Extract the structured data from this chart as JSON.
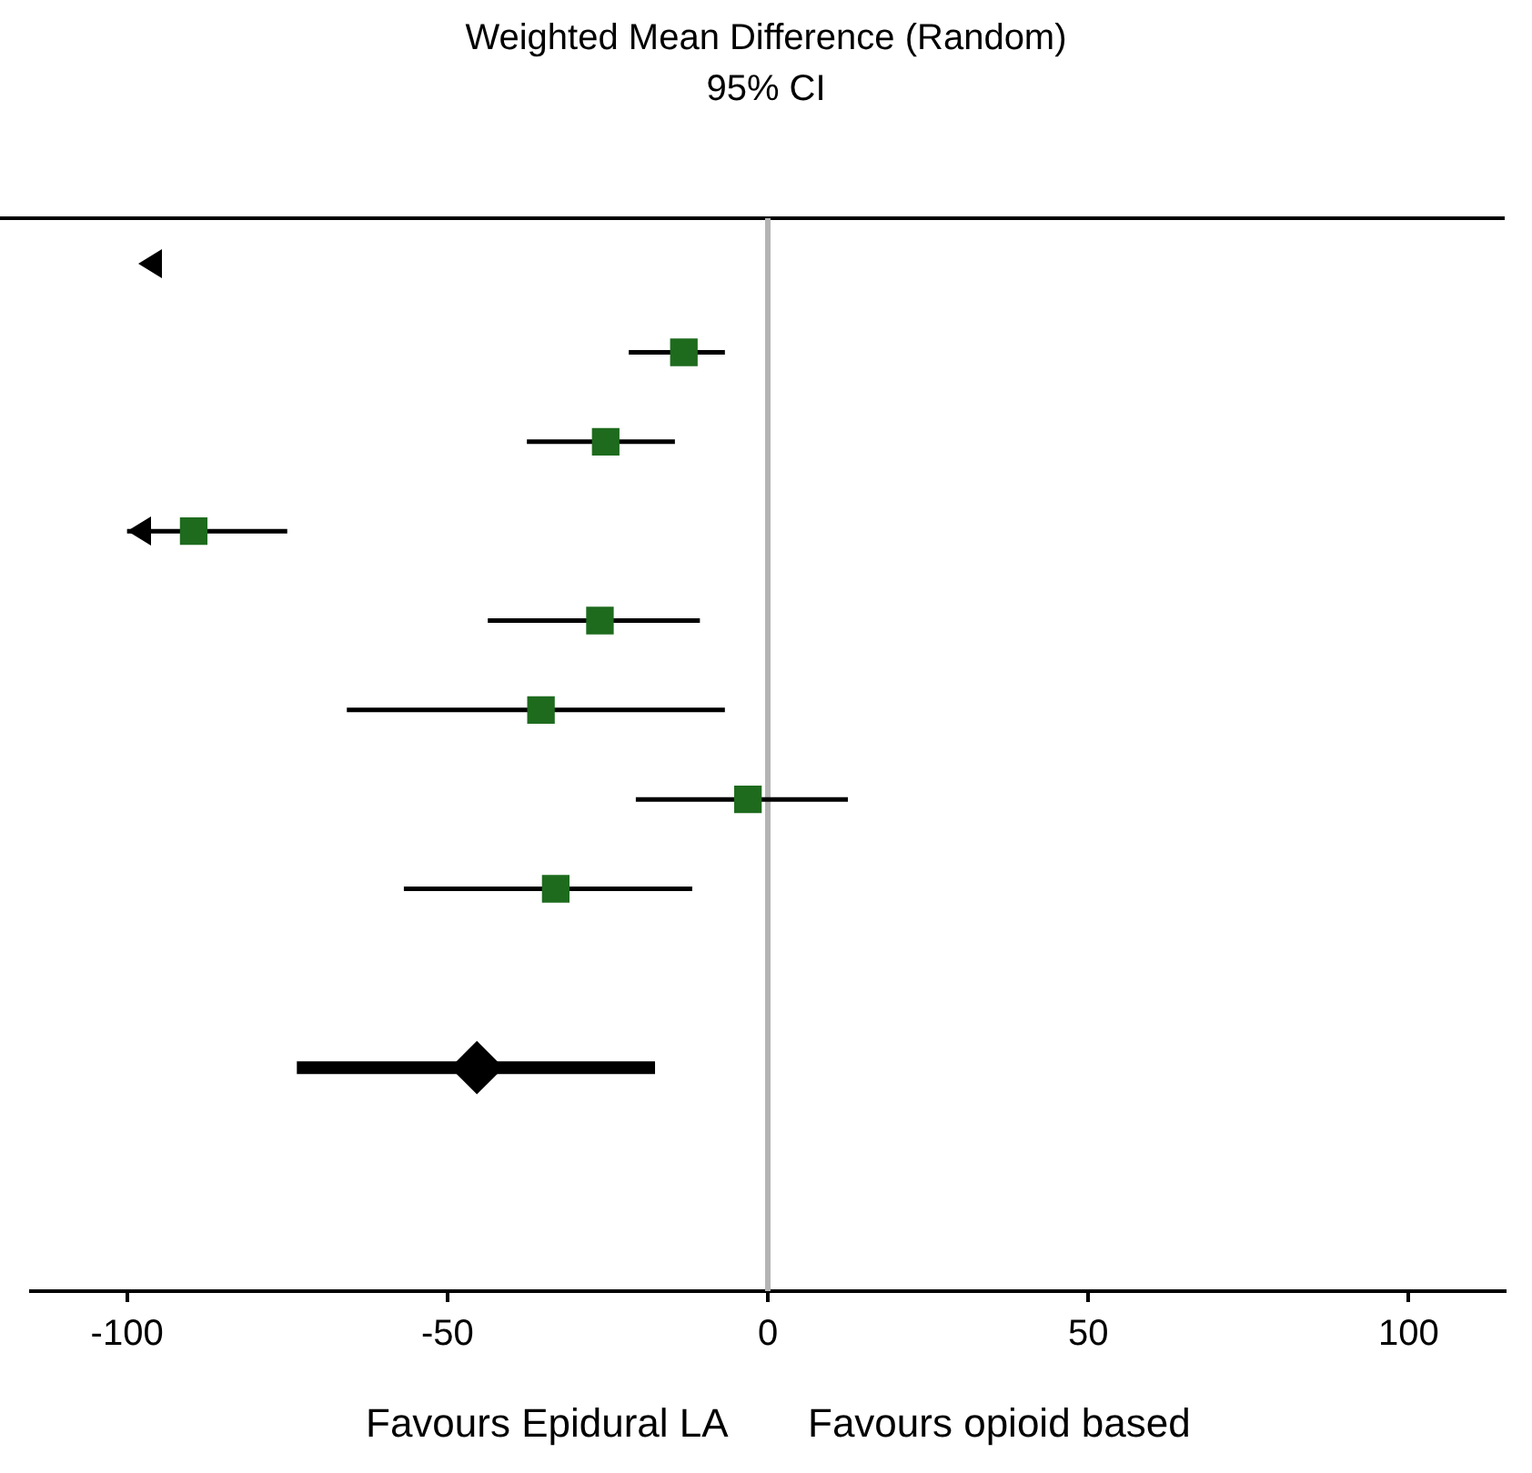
{
  "chart_data": {
    "type": "scatter",
    "title": "Weighted Mean Difference (Random)",
    "subtitle": "95% CI",
    "orientation": "horizontal",
    "categories": [
      null,
      null,
      null,
      null,
      null,
      null,
      null,
      null,
      null,
      null,
      null,
      null
    ],
    "series": [
      {
        "color": "#1e6b1e",
        "marker": "square",
        "values": [
          null,
          -13.1,
          -25.3,
          -89.6,
          -26.2,
          -35.4,
          -3.1,
          -33.1,
          null,
          null,
          null,
          null
        ],
        "errors": [
          null,
          [
            -21.7,
            -6.7
          ],
          [
            -37.6,
            -14.5
          ],
          [
            -100,
            -75
          ],
          [
            -43.7,
            -10.6
          ],
          [
            -65.7,
            -6.7
          ],
          [
            -20.6,
            12.5
          ],
          [
            -56.8,
            -11.8
          ],
          null,
          null,
          null,
          null
        ]
      },
      {
        "color": "#000000",
        "marker": "diamond",
        "values": [
          null,
          null,
          null,
          null,
          null,
          null,
          null,
          null,
          null,
          -45.4,
          null,
          null
        ],
        "errors": [
          null,
          null,
          null,
          null,
          null,
          null,
          null,
          null,
          null,
          [
            -73.5,
            -17.6
          ],
          null,
          null
        ]
      }
    ],
    "xlim": [
      -115,
      115
    ],
    "xticks": [
      -100,
      -50,
      0,
      50,
      100
    ],
    "ref_lines": [
      {
        "axis": "x",
        "value": 0,
        "color": "#b4b4b4"
      }
    ],
    "annotations": [
      "Favours Epidural LA",
      "Favours opioid based"
    ]
  }
}
